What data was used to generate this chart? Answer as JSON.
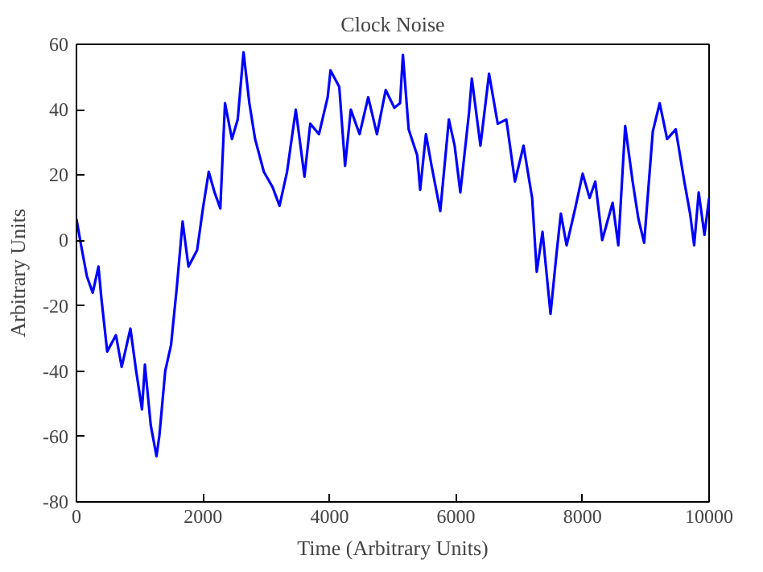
{
  "chart_data": {
    "type": "line",
    "title": "Clock Noise",
    "xlabel": "Time (Arbitrary Units)",
    "ylabel": "Arbitrary Units",
    "xlim": [
      0,
      10000
    ],
    "ylim": [
      -80,
      60
    ],
    "xticks": [
      0,
      2000,
      4000,
      6000,
      8000,
      10000
    ],
    "yticks": [
      -80,
      -60,
      -40,
      -20,
      0,
      20,
      40,
      60
    ],
    "grid": false,
    "x": [
      0,
      73,
      165,
      257,
      348,
      394,
      486,
      624,
      715,
      853,
      944,
      1036,
      1082,
      1174,
      1265,
      1311,
      1403,
      1495,
      1586,
      1678,
      1770,
      1907,
      1999,
      2091,
      2183,
      2274,
      2348,
      2458,
      2549,
      2641,
      2733,
      2824,
      2962,
      3100,
      3210,
      3329,
      3467,
      3604,
      3696,
      3833,
      3971,
      4016,
      4154,
      4246,
      4337,
      4475,
      4612,
      4750,
      4888,
      5025,
      5115,
      5160,
      5251,
      5387,
      5433,
      5524,
      5614,
      5751,
      5887,
      5978,
      6068,
      6205,
      6250,
      6386,
      6522,
      6659,
      6795,
      6931,
      7067,
      7203,
      7276,
      7367,
      7494,
      7585,
      7657,
      7748,
      7884,
      8002,
      8111,
      8202,
      8311,
      8475,
      8565,
      8674,
      8792,
      8883,
      8974,
      9110,
      9219,
      9337,
      9473,
      9609,
      9700,
      9764,
      9836,
      9927,
      10000
    ],
    "series": [
      {
        "color": "#0000ff",
        "values": [
          6.6,
          -1.5,
          -11,
          -16,
          -8,
          -17.7,
          -34,
          -29,
          -38.7,
          -27,
          -40,
          -51.7,
          -38,
          -56.5,
          -66,
          -59.7,
          -40,
          -32,
          -14.4,
          5.8,
          -8,
          -3,
          9.8,
          21,
          14.7,
          9.8,
          42,
          31,
          37,
          57.6,
          42,
          31,
          21,
          16.3,
          10.6,
          21,
          40,
          19.5,
          35.7,
          32.5,
          43.8,
          52,
          47,
          22.8,
          40,
          32.5,
          43.8,
          32.5,
          46,
          40.6,
          42,
          56.8,
          34,
          26,
          15.5,
          32.5,
          22.8,
          9,
          37,
          29,
          14.7,
          39,
          49.5,
          29,
          51,
          35.7,
          37,
          18,
          29,
          13,
          -9.6,
          2.6,
          -22.5,
          -4.7,
          8.2,
          -1.5,
          9.8,
          20.4,
          13,
          18,
          0.1,
          11.5,
          -1.5,
          35,
          18,
          6.6,
          -0.7,
          33.3,
          42,
          31,
          34,
          18,
          8.2,
          -1.5,
          14.7,
          1.7,
          13
        ]
      }
    ]
  }
}
